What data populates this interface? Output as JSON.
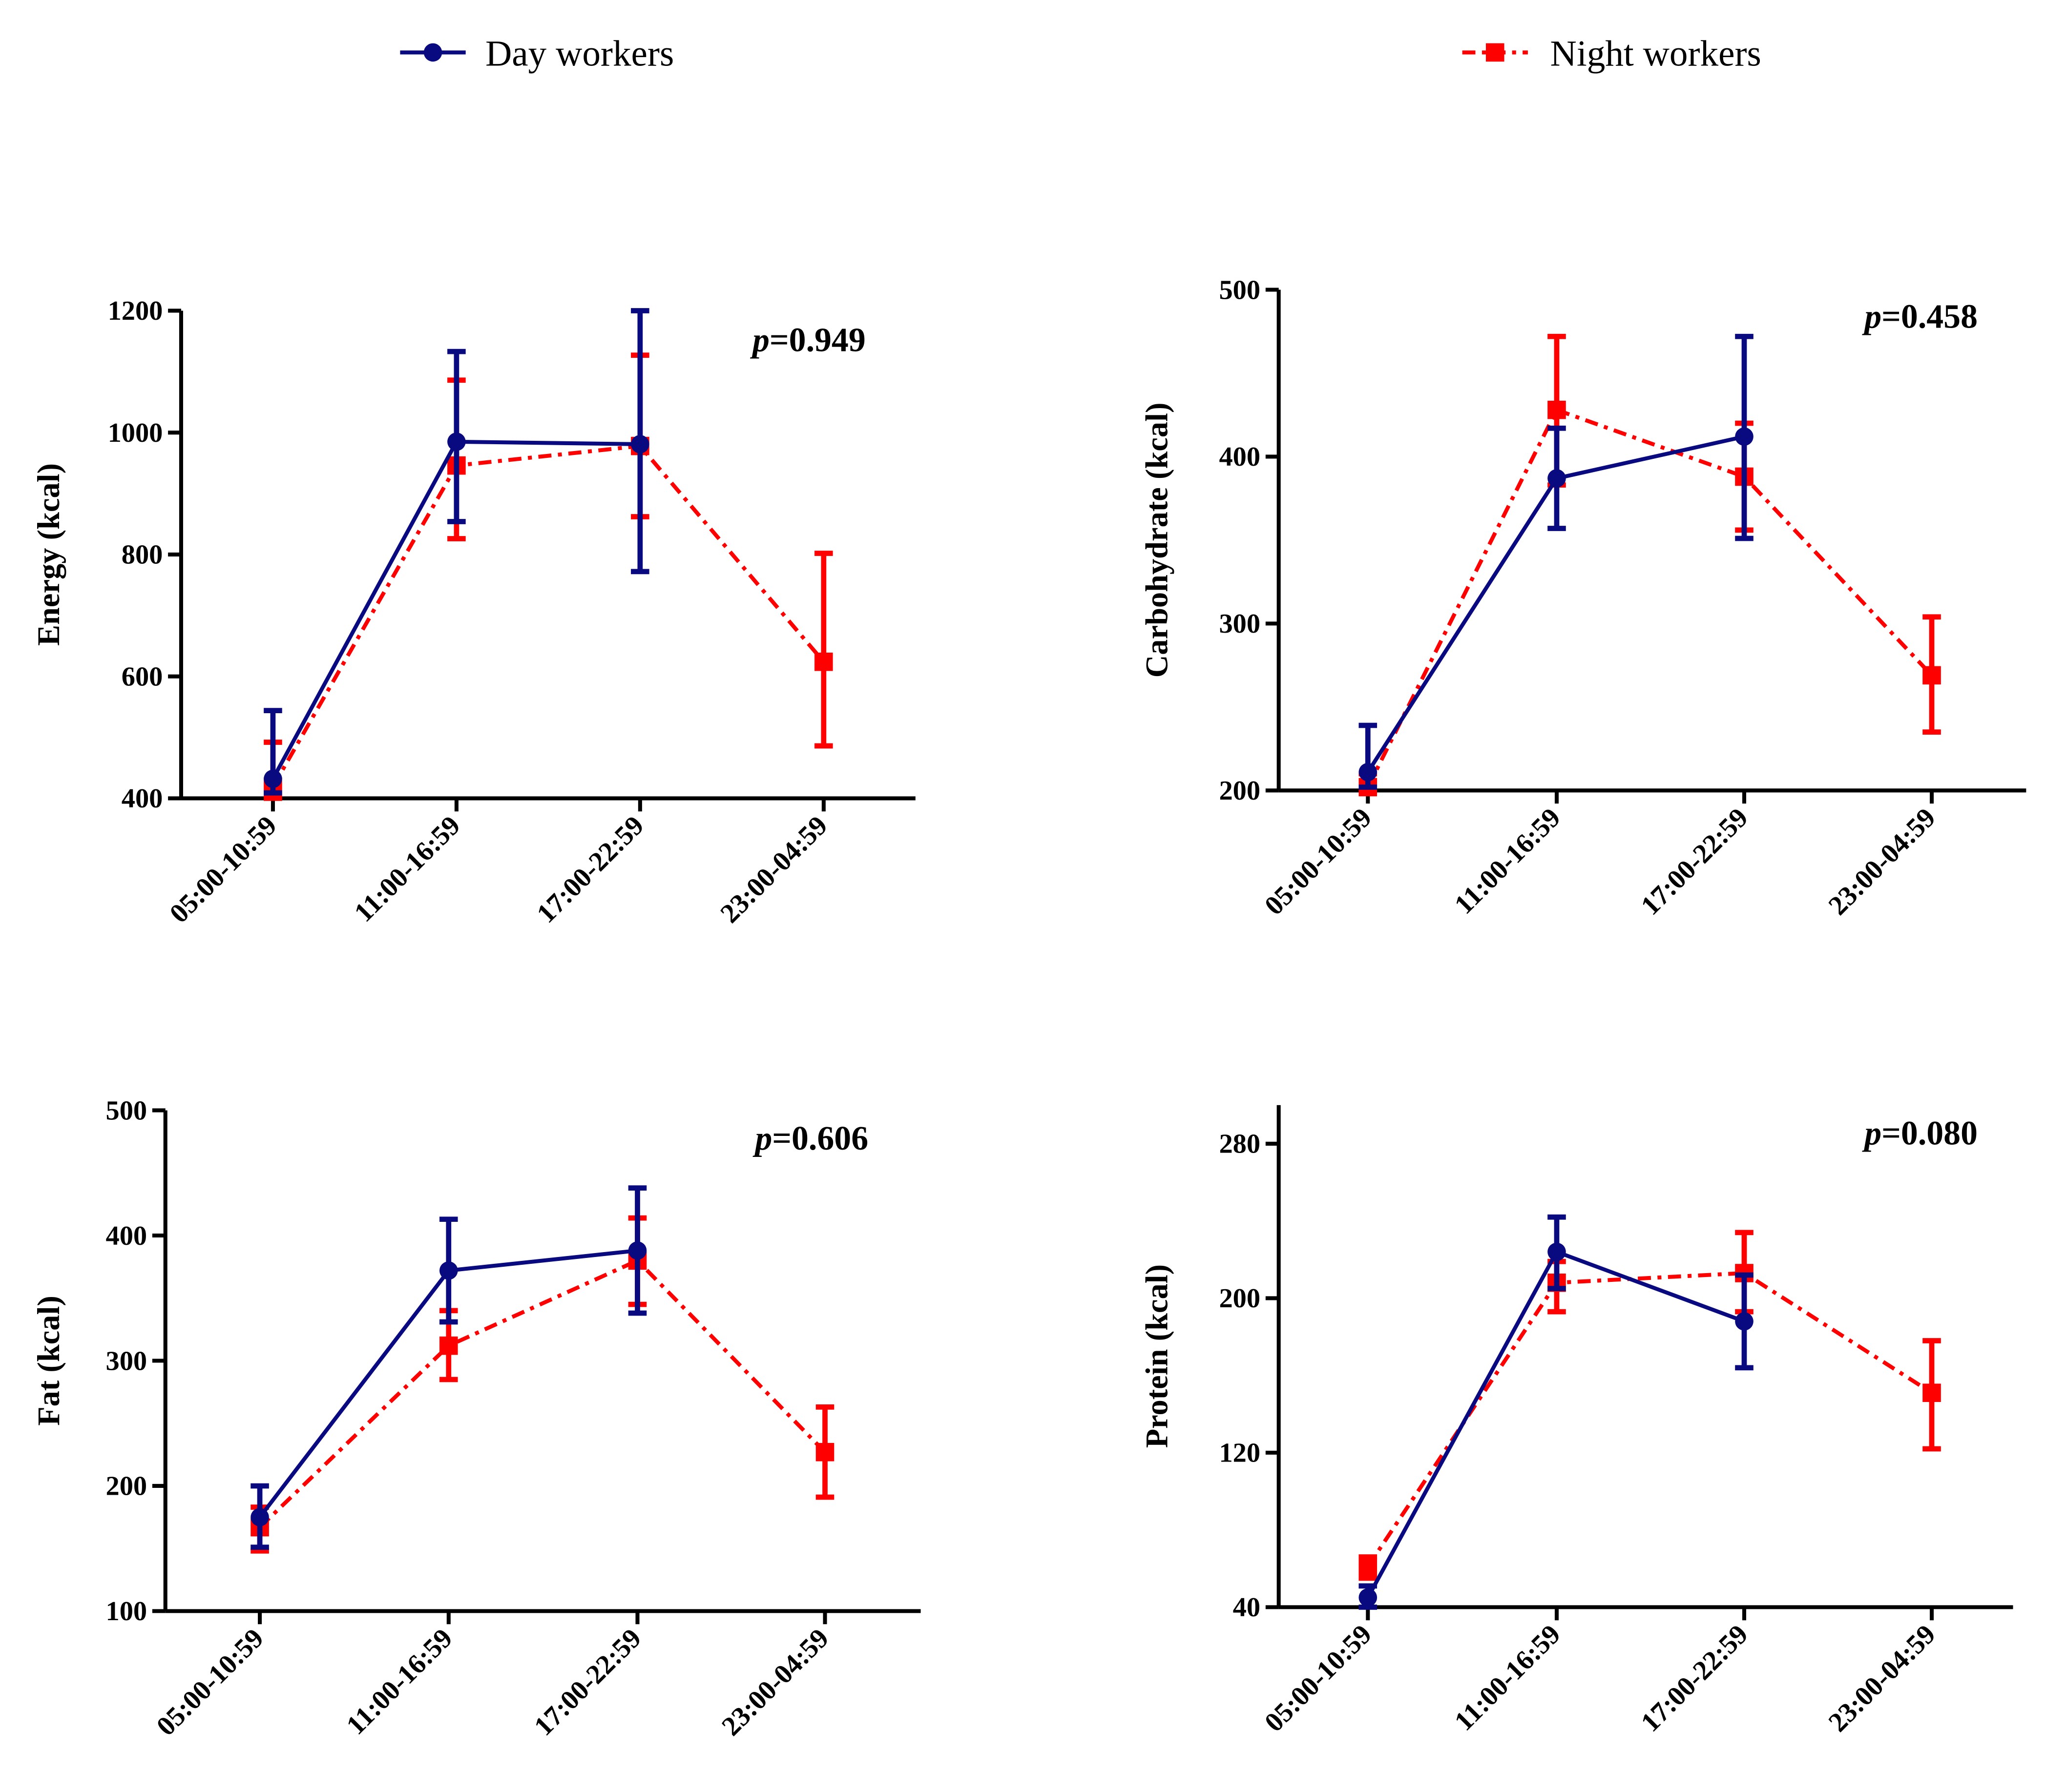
{
  "colors": {
    "day": "#0a0a80",
    "night": "#ff0000"
  },
  "legend": [
    {
      "label": "Day workers",
      "series": "day",
      "marker": "circle",
      "line": "solid"
    },
    {
      "label": "Night workers",
      "series": "night",
      "marker": "square",
      "line": "dash-dot"
    }
  ],
  "chart_data": [
    {
      "type": "line",
      "title": "",
      "ylabel": "Energy (kcal)",
      "p_prefix": "p",
      "p_value": "=0.949",
      "ylim": [
        400,
        1200
      ],
      "yticks": [
        400,
        600,
        800,
        1000,
        1200
      ],
      "categories": [
        "05:00-10:59",
        "11:00-16:59",
        "17:00-22:59",
        "23:00-04:59"
      ],
      "series": [
        {
          "name": "Day workers",
          "values": [
            432,
            985,
            981,
            null
          ],
          "err_low": [
            409,
            854,
            772,
            null
          ],
          "err_high": [
            544,
            1133,
            1200,
            null
          ]
        },
        {
          "name": "Night workers",
          "values": [
            419,
            946,
            978,
            624
          ],
          "err_low": [
            400,
            826,
            862,
            486
          ],
          "err_high": [
            492,
            1086,
            1127,
            802
          ]
        }
      ]
    },
    {
      "type": "line",
      "title": "",
      "ylabel": "Carbohydrate (kcal)",
      "p_prefix": "p",
      "p_value": "=0.458",
      "ylim": [
        200,
        500
      ],
      "yticks": [
        200,
        300,
        400,
        500
      ],
      "categories": [
        "05:00-10:59",
        "11:00-16:59",
        "17:00-22:59",
        "23:00-04:59"
      ],
      "series": [
        {
          "name": "Day workers",
          "values": [
            211,
            387,
            412,
            null
          ],
          "err_low": [
            202,
            357,
            351,
            null
          ],
          "err_high": [
            239,
            417,
            472,
            null
          ]
        },
        {
          "name": "Night workers",
          "values": [
            202,
            428,
            388,
            269
          ],
          "err_low": [
            200,
            383,
            356,
            235
          ],
          "err_high": [
            210,
            472,
            420,
            304
          ]
        }
      ]
    },
    {
      "type": "line",
      "title": "",
      "ylabel": "Fat (kcal)",
      "p_prefix": "p",
      "p_value": "=0.606",
      "ylim": [
        100,
        500
      ],
      "yticks": [
        100,
        200,
        300,
        400,
        500
      ],
      "categories": [
        "05:00-10:59",
        "11:00-16:59",
        "17:00-22:59",
        "23:00-04:59"
      ],
      "series": [
        {
          "name": "Day workers",
          "values": [
            175,
            372,
            388,
            null
          ],
          "err_low": [
            151,
            331,
            338,
            null
          ],
          "err_high": [
            200,
            413,
            438,
            null
          ]
        },
        {
          "name": "Night workers",
          "values": [
            167,
            312,
            380,
            227
          ],
          "err_low": [
            148,
            285,
            345,
            191
          ],
          "err_high": [
            183,
            340,
            414,
            263
          ]
        }
      ]
    },
    {
      "type": "line",
      "title": "",
      "ylabel": "Protein (kcal)",
      "p_prefix": "p",
      "p_value": "=0.080",
      "ylim": [
        40,
        300
      ],
      "yticks": [
        40,
        120,
        200,
        280
      ],
      "categories": [
        "05:00-10:59",
        "11:00-16:59",
        "17:00-22:59",
        "23:00-04:59"
      ],
      "series": [
        {
          "name": "Day workers",
          "values": [
            45,
            224,
            188,
            null
          ],
          "err_low": [
            40,
            205,
            164,
            null
          ],
          "err_high": [
            51,
            242,
            212,
            null
          ]
        },
        {
          "name": "Night workers",
          "values": [
            61,
            208,
            213,
            151
          ],
          "err_low": [
            55,
            193,
            193,
            122
          ],
          "err_high": [
            66,
            219,
            234,
            178
          ]
        }
      ]
    }
  ]
}
